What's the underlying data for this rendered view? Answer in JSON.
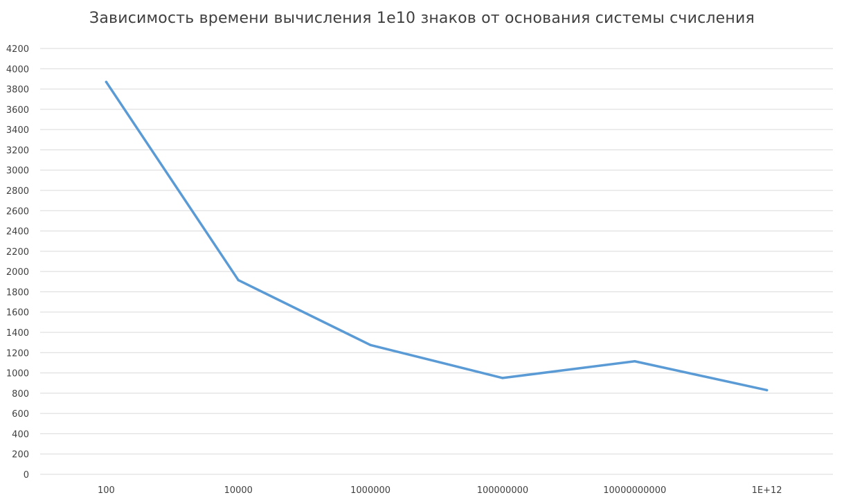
{
  "chart_data": {
    "type": "line",
    "title": "Зависимость времени вычисления 1e10 знаков от основания системы счисления",
    "categories": [
      "100",
      "10000",
      "1000000",
      "100000000",
      "10000000000",
      "1E+12"
    ],
    "series": [
      {
        "values": [
          3870,
          1915,
          1275,
          950,
          1115,
          830
        ],
        "color": "#5b9bd5"
      }
    ],
    "ylim": [
      0,
      4200
    ],
    "y_ticks": [
      "0",
      "200",
      "400",
      "600",
      "800",
      "1000",
      "1200",
      "1400",
      "1600",
      "1800",
      "2000",
      "2200",
      "2400",
      "2600",
      "2800",
      "3000",
      "3200",
      "3400",
      "3600",
      "3800",
      "4000",
      "4200"
    ],
    "grid": true,
    "legend": "none"
  }
}
